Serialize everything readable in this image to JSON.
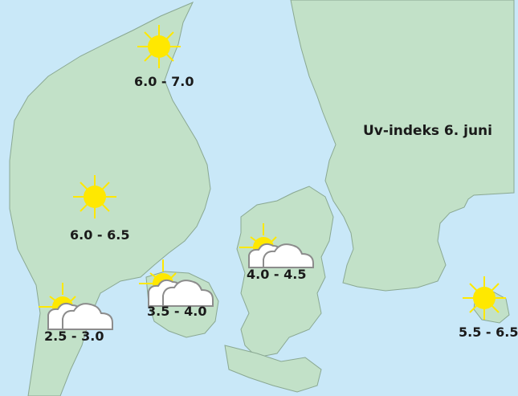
{
  "title": "Uv-indeks 6. juni",
  "colors": {
    "sea": "#c9e8f8",
    "land": "#c2e1c8",
    "coast": "#8aa892",
    "sun": "#ffe800",
    "cloud": "#ffffff",
    "cloud_outline": "#8c8c8c"
  },
  "regions": [
    {
      "name": "north-jutland",
      "uv_range": "6.0 - 7.0",
      "icon": "sun-icon"
    },
    {
      "name": "central-jutland",
      "uv_range": "6.0 - 6.5",
      "icon": "sun-icon"
    },
    {
      "name": "south-jutland",
      "uv_range": "2.5 - 3.0",
      "icon": "partly-cloudy-icon"
    },
    {
      "name": "funen",
      "uv_range": "3.5 - 4.0",
      "icon": "partly-cloudy-icon"
    },
    {
      "name": "zealand",
      "uv_range": "4.0 - 4.5",
      "icon": "partly-cloudy-icon"
    },
    {
      "name": "bornholm",
      "uv_range": "5.5 - 6.5",
      "icon": "sun-icon"
    }
  ]
}
